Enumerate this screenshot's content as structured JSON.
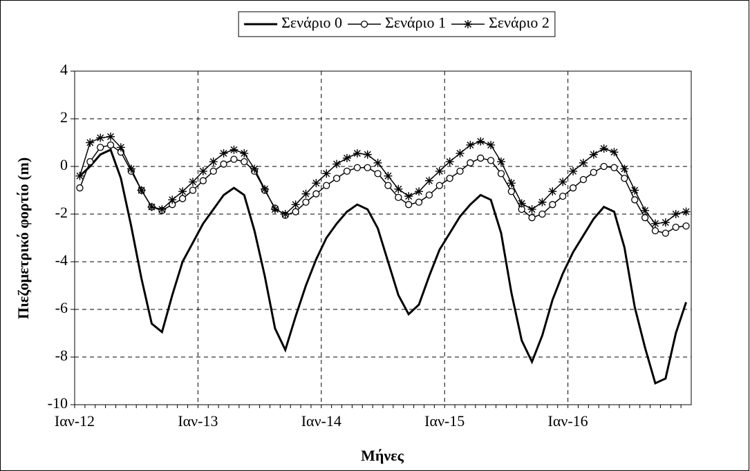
{
  "chart_data": {
    "type": "line",
    "x_label": "Μήνες",
    "y_label": "Πιεζομετρικό φορτίο (m)",
    "categories": [
      "Ιαν-12",
      null,
      null,
      null,
      null,
      null,
      null,
      null,
      null,
      null,
      null,
      null,
      "Ιαν-13",
      null,
      null,
      null,
      null,
      null,
      null,
      null,
      null,
      null,
      null,
      null,
      "Ιαν-14",
      null,
      null,
      null,
      null,
      null,
      null,
      null,
      null,
      null,
      null,
      null,
      "Ιαν-15",
      null,
      null,
      null,
      null,
      null,
      null,
      null,
      null,
      null,
      null,
      null,
      "Ιαν-16",
      null,
      null,
      null,
      null,
      null,
      null,
      null,
      null,
      null,
      null,
      null
    ],
    "ylim": [
      -10,
      4
    ],
    "yticks": [
      -10,
      -8,
      -6,
      -4,
      -2,
      0,
      2,
      4
    ],
    "grid": true,
    "legend": "top",
    "series": [
      {
        "name": "Σενάριο 0",
        "color": "#000000",
        "marker": "none",
        "values": [
          -0.4,
          0.0,
          0.5,
          0.7,
          -0.5,
          -2.5,
          -4.7,
          -6.6,
          -6.95,
          -5.4,
          -4.0,
          -3.2,
          -2.4,
          -1.8,
          -1.2,
          -0.9,
          -1.2,
          -2.7,
          -4.6,
          -6.8,
          -7.7,
          -6.3,
          -5.0,
          -3.9,
          -3.0,
          -2.4,
          -1.9,
          -1.6,
          -1.8,
          -2.6,
          -4.0,
          -5.4,
          -6.2,
          -5.8,
          -4.6,
          -3.5,
          -2.8,
          -2.1,
          -1.6,
          -1.2,
          -1.4,
          -2.8,
          -5.3,
          -7.3,
          -8.2,
          -7.1,
          -5.6,
          -4.5,
          -3.6,
          -2.9,
          -2.2,
          -1.7,
          -1.9,
          -3.4,
          -5.9,
          -7.6,
          -9.1,
          -8.9,
          -7.0,
          -5.7
        ]
      },
      {
        "name": "Σενάριο 1",
        "color": "#000000",
        "marker": "circle",
        "values": [
          -0.9,
          0.2,
          0.8,
          0.9,
          0.6,
          -0.2,
          -1.0,
          -1.7,
          -1.85,
          -1.6,
          -1.35,
          -1.0,
          -0.6,
          -0.2,
          0.1,
          0.3,
          0.2,
          -0.2,
          -1.0,
          -1.75,
          -2.05,
          -1.9,
          -1.5,
          -1.15,
          -0.8,
          -0.5,
          -0.2,
          -0.05,
          -0.05,
          -0.3,
          -0.8,
          -1.3,
          -1.6,
          -1.5,
          -1.2,
          -0.8,
          -0.5,
          -0.2,
          0.15,
          0.35,
          0.25,
          -0.3,
          -1.05,
          -1.8,
          -2.15,
          -2.0,
          -1.6,
          -1.25,
          -0.9,
          -0.55,
          -0.25,
          0.0,
          -0.05,
          -0.5,
          -1.4,
          -2.15,
          -2.7,
          -2.8,
          -2.55,
          -2.5
        ]
      },
      {
        "name": "Σενάριο 2",
        "color": "#000000",
        "marker": "star",
        "values": [
          -0.4,
          1.0,
          1.2,
          1.25,
          0.8,
          -0.1,
          -1.0,
          -1.7,
          -1.8,
          -1.4,
          -1.05,
          -0.65,
          -0.2,
          0.2,
          0.55,
          0.7,
          0.55,
          -0.1,
          -0.95,
          -1.8,
          -2.0,
          -1.6,
          -1.15,
          -0.7,
          -0.3,
          0.1,
          0.35,
          0.55,
          0.5,
          0.15,
          -0.4,
          -0.95,
          -1.25,
          -1.05,
          -0.6,
          -0.2,
          0.2,
          0.55,
          0.9,
          1.05,
          0.9,
          0.2,
          -0.7,
          -1.55,
          -1.8,
          -1.5,
          -1.05,
          -0.65,
          -0.2,
          0.15,
          0.5,
          0.75,
          0.6,
          -0.1,
          -1.0,
          -1.85,
          -2.4,
          -2.35,
          -2.0,
          -1.9
        ]
      }
    ]
  }
}
